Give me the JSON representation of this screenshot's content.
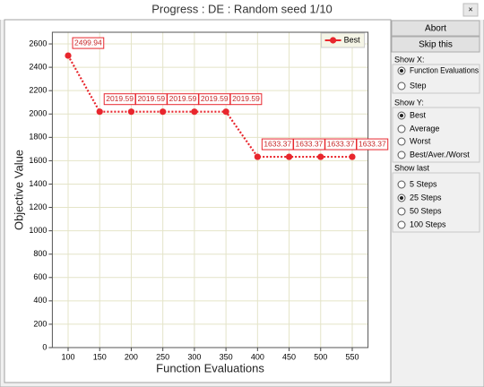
{
  "window": {
    "title": "Progress : DE : Random seed 1/10",
    "close": "×"
  },
  "buttons": [
    "Abort",
    "Skip this"
  ],
  "groups": [
    {
      "label": "Show X:",
      "options": [
        "Function Evaluations",
        "Step"
      ],
      "selected": 0
    },
    {
      "label": "Show Y:",
      "options": [
        "Best",
        "Average",
        "Worst",
        "Best/Aver./Worst"
      ],
      "selected": 0
    },
    {
      "label": "Show last",
      "options": [
        "5 Steps",
        "25 Steps",
        "50 Steps",
        "100 Steps"
      ],
      "selected": 1
    }
  ],
  "chart_data": {
    "type": "line",
    "x_label": "Function Evaluations",
    "y_label": "Objective Value",
    "x": [
      100,
      150,
      200,
      250,
      300,
      350,
      400,
      450,
      500,
      550
    ],
    "series": [
      {
        "name": "Best",
        "color": "#e8262d",
        "values": [
          2499.94,
          2019.59,
          2019.59,
          2019.59,
          2019.59,
          2019.59,
          1633.37,
          1633.37,
          1633.37,
          1633.37
        ]
      }
    ],
    "xlim": [
      75,
      575
    ],
    "ylim": [
      0,
      2700
    ],
    "xticks": [
      100,
      150,
      200,
      250,
      300,
      350,
      400,
      450,
      500,
      550
    ],
    "yticks": [
      0,
      200,
      400,
      600,
      800,
      1000,
      1200,
      1400,
      1600,
      1800,
      2000,
      2200,
      2400,
      2600
    ],
    "grid": true,
    "legend": "top-right",
    "data_labels": true
  }
}
